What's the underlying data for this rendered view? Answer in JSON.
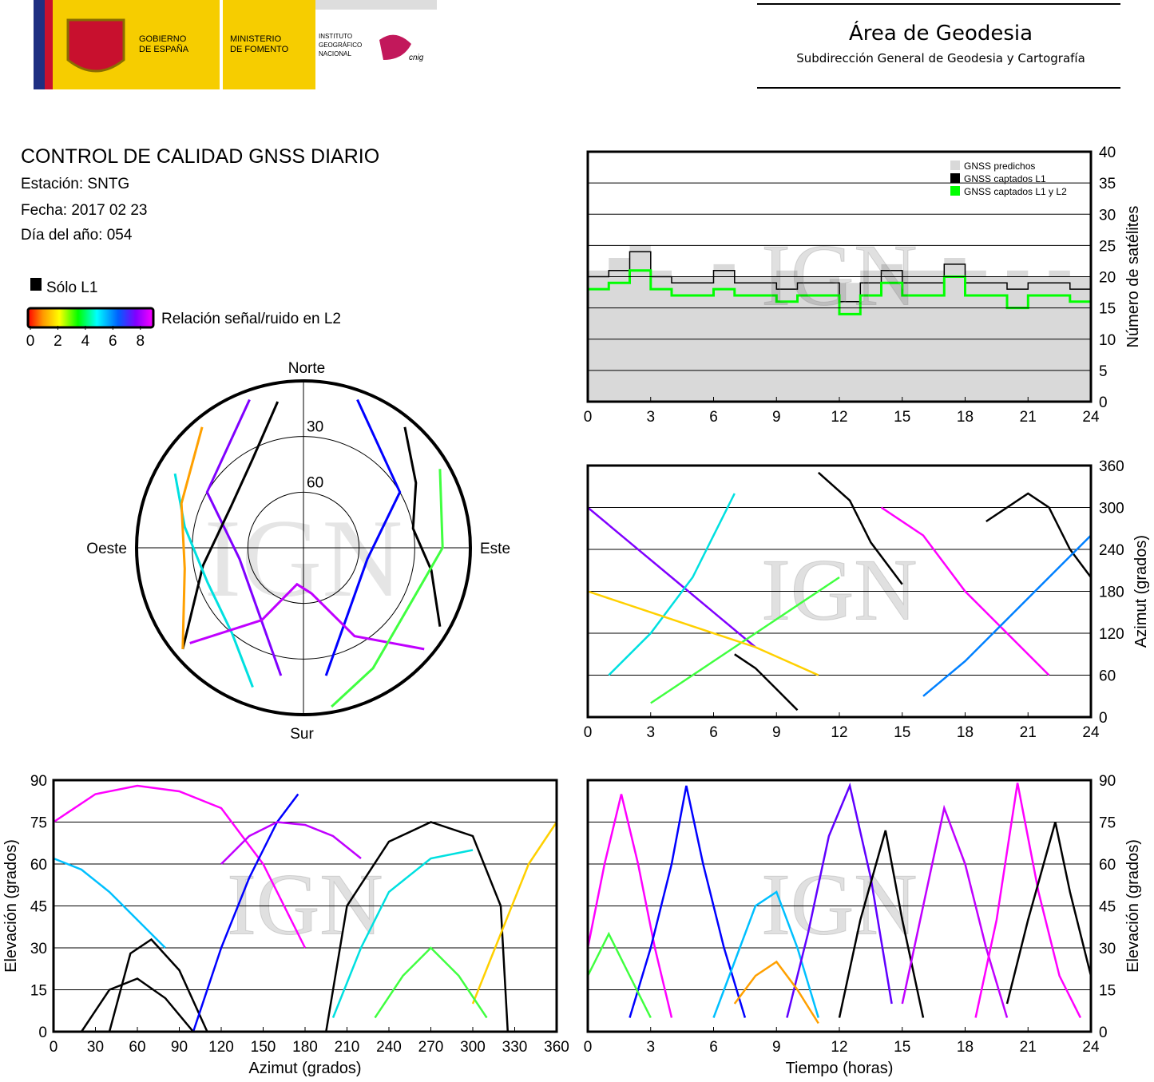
{
  "header": {
    "gobierno": [
      "GOBIERNO",
      "DE ESPAÑA"
    ],
    "ministerio": [
      "MINISTERIO",
      "DE FOMENTO"
    ],
    "instituto": [
      "INSTITUTO",
      "GEOGRÁFICO",
      "NACIONAL"
    ],
    "cnig": "cnig",
    "area": "Área de Geodesia",
    "subdireccion": "Subdirección General de Geodesia y Cartografía"
  },
  "report": {
    "title": "CONTROL DE CALIDAD GNSS DIARIO",
    "station": "Estación: SNTG",
    "date": "Fecha: 2017 02 23",
    "doy": "Día del año: 054"
  },
  "legend": {
    "l1_only": "Sólo L1",
    "snr_label": "Relación señal/ruido en L2",
    "snr_lim": [
      0,
      9
    ],
    "snr_ticks": [
      0,
      2,
      4,
      6,
      8
    ]
  },
  "chart_data": [
    {
      "type": "polar",
      "north": "Norte",
      "south": "Sur",
      "east": "Este",
      "west": "Oeste",
      "watermark": "IGN",
      "rings": [
        30,
        60
      ],
      "series": [
        {
          "color": "#0000ff",
          "x": [
            20,
            60,
            100,
            140,
            170
          ],
          "values": [
            5,
            30,
            55,
            50,
            20
          ]
        },
        {
          "color": "#8000ff",
          "x": [
            340,
            300,
            260,
            220,
            190
          ],
          "values": [
            5,
            30,
            55,
            50,
            20
          ]
        },
        {
          "color": "#000000",
          "x": [
            350,
            330,
            300,
            260,
            230
          ],
          "values": [
            10,
            35,
            45,
            35,
            5
          ]
        },
        {
          "color": "#000000",
          "x": [
            40,
            60,
            80,
            100,
            120
          ],
          "values": [
            5,
            20,
            30,
            20,
            5
          ]
        },
        {
          "color": "#00e0e0",
          "x": [
            300,
            280,
            250,
            220,
            200
          ],
          "values": [
            10,
            25,
            35,
            30,
            10
          ]
        },
        {
          "color": "#c000ff",
          "x": [
            130,
            150,
            170,
            190,
            210,
            230
          ],
          "values": [
            5,
            35,
            65,
            70,
            45,
            10
          ]
        },
        {
          "color": "#ffa000",
          "x": [
            320,
            290,
            260,
            230
          ],
          "values": [
            5,
            20,
            25,
            5
          ]
        },
        {
          "color": "#40ff40",
          "x": [
            60,
            90,
            120,
            150,
            170
          ],
          "values": [
            5,
            15,
            25,
            15,
            3
          ]
        }
      ]
    },
    {
      "type": "step",
      "ylabel": "Número de satélites",
      "watermark": "IGN",
      "x": [
        0,
        1,
        2,
        3,
        4,
        5,
        6,
        7,
        8,
        9,
        10,
        11,
        12,
        13,
        14,
        15,
        16,
        17,
        18,
        19,
        20,
        21,
        22,
        23,
        24
      ],
      "xlim": [
        0,
        24
      ],
      "xticks": [
        0,
        3,
        6,
        9,
        12,
        15,
        18,
        21,
        24
      ],
      "ylim": [
        0,
        40
      ],
      "yticks": [
        0,
        5,
        10,
        15,
        20,
        25,
        30,
        35,
        40
      ],
      "grid": true,
      "series": [
        {
          "name": "GNSS predichos",
          "color": "#d9d9d9",
          "values": [
            21,
            23,
            25,
            21,
            20,
            20,
            22,
            20,
            20,
            21,
            20,
            20,
            19,
            21,
            22,
            21,
            21,
            23,
            21,
            20,
            21,
            20,
            21,
            20,
            20
          ]
        },
        {
          "name": "GNSS captados L1",
          "color": "#000000",
          "values": [
            20,
            21,
            24,
            20,
            19,
            19,
            21,
            19,
            19,
            18,
            19,
            19,
            16,
            19,
            21,
            19,
            19,
            22,
            19,
            19,
            18,
            19,
            19,
            18,
            19
          ]
        },
        {
          "name": "GNSS captados L1 y L2",
          "color": "#00ff00",
          "values": [
            18,
            19,
            21,
            18,
            17,
            17,
            18,
            17,
            17,
            16,
            17,
            17,
            14,
            17,
            19,
            17,
            17,
            20,
            17,
            17,
            15,
            17,
            17,
            16,
            16
          ]
        }
      ]
    },
    {
      "type": "line",
      "ylabel": "Azimut (grados)",
      "watermark": "IGN",
      "xlim": [
        0,
        24
      ],
      "xticks": [
        0,
        3,
        6,
        9,
        12,
        15,
        18,
        21,
        24
      ],
      "ylim": [
        0,
        360
      ],
      "yticks": [
        0,
        60,
        120,
        180,
        240,
        300,
        360
      ],
      "grid": true,
      "series": [
        {
          "color": "#8000ff",
          "x": [
            0,
            2,
            4,
            6,
            8
          ],
          "values": [
            300,
            250,
            200,
            150,
            100
          ]
        },
        {
          "color": "#00e0e0",
          "x": [
            1,
            3,
            5,
            7
          ],
          "values": [
            60,
            120,
            200,
            320
          ]
        },
        {
          "color": "#000000",
          "x": [
            11,
            12.5,
            13.5,
            15
          ],
          "values": [
            350,
            310,
            250,
            190
          ]
        },
        {
          "color": "#40ff40",
          "x": [
            3,
            6,
            9,
            12
          ],
          "values": [
            20,
            80,
            140,
            200
          ]
        },
        {
          "color": "#ff00ff",
          "x": [
            14,
            16,
            18,
            20,
            22
          ],
          "values": [
            300,
            260,
            180,
            120,
            60
          ]
        },
        {
          "color": "#000000",
          "x": [
            19,
            21,
            22,
            23,
            24
          ],
          "values": [
            280,
            320,
            300,
            240,
            200
          ]
        },
        {
          "color": "#000000",
          "x": [
            7,
            8,
            9,
            10
          ],
          "values": [
            90,
            70,
            40,
            10
          ]
        },
        {
          "color": "#0080ff",
          "x": [
            16,
            18,
            20,
            22,
            24
          ],
          "values": [
            30,
            80,
            140,
            200,
            260
          ]
        },
        {
          "color": "#ffd000",
          "x": [
            0,
            2,
            5,
            8,
            11
          ],
          "values": [
            180,
            160,
            130,
            100,
            60
          ]
        }
      ]
    },
    {
      "type": "line",
      "xlabel": "Azimut (grados)",
      "ylabel": "Elevación (grados)",
      "watermark": "IGN",
      "xlim": [
        0,
        360
      ],
      "xticks": [
        0,
        30,
        60,
        90,
        120,
        150,
        180,
        210,
        240,
        270,
        300,
        330,
        360
      ],
      "ylim": [
        0,
        90
      ],
      "yticks": [
        0,
        15,
        30,
        45,
        60,
        75,
        90
      ],
      "grid": true,
      "series": [
        {
          "color": "#000000",
          "x": [
            195,
            210,
            240,
            270,
            300,
            320,
            325
          ],
          "values": [
            0,
            45,
            68,
            75,
            70,
            45,
            0
          ]
        },
        {
          "color": "#000000",
          "x": [
            40,
            55,
            70,
            90,
            110
          ],
          "values": [
            0,
            28,
            33,
            22,
            0
          ]
        },
        {
          "color": "#000000",
          "x": [
            20,
            40,
            60,
            80,
            100
          ],
          "values": [
            0,
            15,
            19,
            12,
            0
          ]
        },
        {
          "color": "#ff00ff",
          "x": [
            0,
            30,
            60,
            90,
            120,
            150,
            180
          ],
          "values": [
            75,
            85,
            88,
            86,
            80,
            60,
            30
          ]
        },
        {
          "color": "#0000ff",
          "x": [
            100,
            120,
            140,
            160,
            175
          ],
          "values": [
            0,
            30,
            55,
            75,
            85
          ]
        },
        {
          "color": "#00e0e0",
          "x": [
            200,
            220,
            240,
            270,
            300
          ],
          "values": [
            5,
            30,
            50,
            62,
            65
          ]
        },
        {
          "color": "#00c0ff",
          "x": [
            0,
            20,
            40,
            60,
            80
          ],
          "values": [
            62,
            58,
            50,
            40,
            30
          ]
        },
        {
          "color": "#ffd000",
          "x": [
            300,
            320,
            340,
            360
          ],
          "values": [
            10,
            35,
            60,
            75
          ]
        },
        {
          "color": "#c000ff",
          "x": [
            120,
            140,
            160,
            180,
            200,
            220
          ],
          "values": [
            60,
            70,
            75,
            74,
            70,
            62
          ]
        },
        {
          "color": "#40ff40",
          "x": [
            230,
            250,
            270,
            290,
            310
          ],
          "values": [
            5,
            20,
            30,
            20,
            5
          ]
        }
      ]
    },
    {
      "type": "line",
      "xlabel": "Tiempo (horas)",
      "ylabel": "Elevación (grados)",
      "watermark": "IGN",
      "xlim": [
        0,
        24
      ],
      "xticks": [
        0,
        3,
        6,
        9,
        12,
        15,
        18,
        21,
        24
      ],
      "ylim": [
        0,
        90
      ],
      "yticks": [
        0,
        15,
        30,
        45,
        60,
        75,
        90
      ],
      "grid": true,
      "series": [
        {
          "color": "#ff00ff",
          "x": [
            0,
            0.8,
            1.6,
            2.4,
            3.2,
            4
          ],
          "values": [
            30,
            60,
            85,
            60,
            30,
            5
          ]
        },
        {
          "color": "#0000ff",
          "x": [
            2,
            3,
            4,
            4.7,
            5.5,
            6.5,
            7.5
          ],
          "values": [
            5,
            30,
            60,
            88,
            60,
            30,
            5
          ]
        },
        {
          "color": "#00c0ff",
          "x": [
            6,
            7,
            8,
            9,
            10,
            11
          ],
          "values": [
            5,
            25,
            45,
            50,
            30,
            5
          ]
        },
        {
          "color": "#6000ff",
          "x": [
            9.5,
            10.5,
            11.5,
            12.5,
            13.5,
            14.5
          ],
          "values": [
            5,
            35,
            70,
            88,
            55,
            10
          ]
        },
        {
          "color": "#000000",
          "x": [
            12,
            13,
            14.2,
            15,
            16
          ],
          "values": [
            5,
            40,
            72,
            40,
            5
          ]
        },
        {
          "color": "#c000ff",
          "x": [
            15,
            16,
            17,
            18,
            19,
            20
          ],
          "values": [
            10,
            45,
            80,
            60,
            30,
            5
          ]
        },
        {
          "color": "#ff00ff",
          "x": [
            18.5,
            19.5,
            20.5,
            21.5,
            22.5,
            23.5
          ],
          "values": [
            5,
            40,
            89,
            50,
            20,
            5
          ]
        },
        {
          "color": "#000000",
          "x": [
            20,
            21,
            22.3,
            23,
            24
          ],
          "values": [
            10,
            40,
            75,
            50,
            20
          ]
        },
        {
          "color": "#40ff40",
          "x": [
            0,
            1,
            2,
            3
          ],
          "values": [
            20,
            35,
            20,
            5
          ]
        },
        {
          "color": "#ffa000",
          "x": [
            7,
            8,
            9,
            10,
            11
          ],
          "values": [
            10,
            20,
            25,
            15,
            3
          ]
        }
      ]
    }
  ]
}
